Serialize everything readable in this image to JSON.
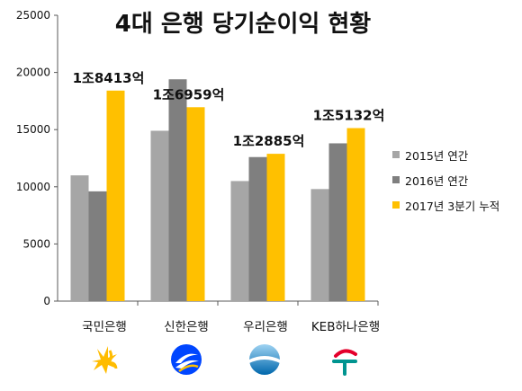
{
  "title": "4대 은행 당기순이익 현황",
  "legend": {
    "items": [
      {
        "label": "2015년 연간",
        "color": "#a6a6a6"
      },
      {
        "label": "2016년 연간",
        "color": "#7f7f7f"
      },
      {
        "label": "2017년 3분기 누적",
        "color": "#ffc000"
      }
    ]
  },
  "banks": [
    {
      "name": "국민은행",
      "logo_icon": "kb-star-logo-icon",
      "logo_color": "#ffbc00"
    },
    {
      "name": "신한은행",
      "logo_icon": "shinhan-logo-icon",
      "logo_color": "#0046ff"
    },
    {
      "name": "우리은행",
      "logo_icon": "woori-logo-icon",
      "logo_color": "#0067ac"
    },
    {
      "name": "KEB하나은행",
      "logo_icon": "hana-logo-icon",
      "logo_color": "#009490"
    }
  ],
  "chart_data": {
    "type": "bar",
    "title": "4대 은행 당기순이익 현황",
    "categories": [
      "국민은행",
      "신한은행",
      "우리은행",
      "KEB하나은행"
    ],
    "series": [
      {
        "name": "2015년 연간",
        "color": "#a6a6a6",
        "values": [
          11000,
          14900,
          10500,
          9800
        ]
      },
      {
        "name": "2016년 연간",
        "color": "#7f7f7f",
        "values": [
          9600,
          19400,
          12600,
          13800
        ]
      },
      {
        "name": "2017년 3분기 누적",
        "color": "#ffc000",
        "values": [
          18413,
          16959,
          12885,
          15132
        ]
      }
    ],
    "data_labels": [
      "1조8413억",
      "1조6959억",
      "1조2885억",
      "1조5132억"
    ],
    "y_ticks": [
      0,
      5000,
      10000,
      15000,
      20000,
      25000
    ],
    "ylim": [
      0,
      25000
    ],
    "grid": false,
    "legend_position": "right"
  }
}
